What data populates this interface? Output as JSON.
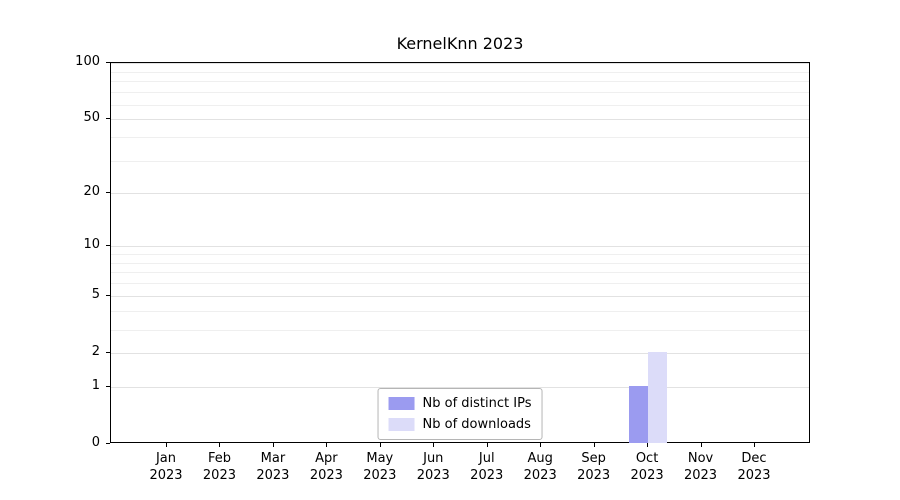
{
  "chart_data": {
    "type": "bar",
    "title": "KernelKnn 2023",
    "categories": [
      "Jan 2023",
      "Feb 2023",
      "Mar 2023",
      "Apr 2023",
      "May 2023",
      "Jun 2023",
      "Jul 2023",
      "Aug 2023",
      "Sep 2023",
      "Oct 2023",
      "Nov 2023",
      "Dec 2023"
    ],
    "series": [
      {
        "name": "Nb of distinct IPs",
        "color": "#9b9bf0",
        "values": [
          0,
          0,
          0,
          0,
          0,
          0,
          0,
          0,
          0,
          1,
          0,
          0
        ]
      },
      {
        "name": "Nb of downloads",
        "color": "#dcdcf9",
        "values": [
          0,
          0,
          0,
          0,
          0,
          0,
          0,
          0,
          0,
          2,
          0,
          0
        ]
      }
    ],
    "yscale": "log1p",
    "ylim": [
      0,
      100
    ],
    "yticks": [
      0,
      1,
      2,
      5,
      10,
      20,
      50,
      100
    ],
    "minor_yticks": [
      3,
      4,
      6,
      7,
      8,
      9,
      30,
      40,
      60,
      70,
      80,
      90
    ],
    "grid": "horizontal",
    "legend_position": "bottom-center"
  }
}
